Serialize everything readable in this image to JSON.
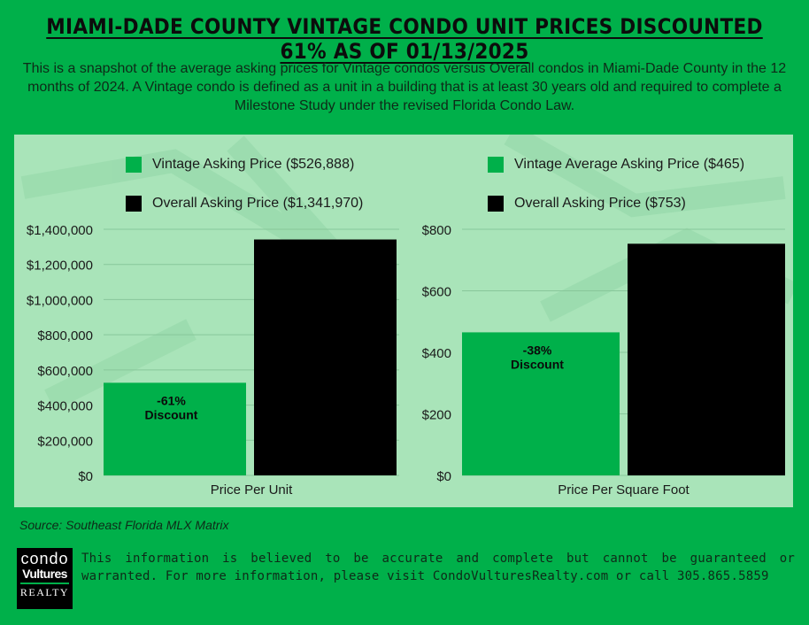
{
  "header": {
    "title": "MIAMI-DADE COUNTY VINTAGE CONDO UNIT PRICES DISCOUNTED 61% AS OF 01/13/2025",
    "subtitle": "This is a snapshot of the average asking prices for Vintage condos versus Overall condos in Miami-Dade County in the 12 months of 2024. A Vintage condo is defined as a unit in a building that is at least 30 years old and required to complete a Milestone Study under the revised Florida Condo Law."
  },
  "colors": {
    "vintage": "#00b04a",
    "overall": "#000000",
    "panel": "#a9e4b9",
    "background": "#00b04a"
  },
  "chart_data": [
    {
      "type": "bar",
      "categories": [
        "Price Per Unit"
      ],
      "series": [
        {
          "name": "Vintage Asking Price ($526,888)",
          "values": [
            526888
          ]
        },
        {
          "name": "Overall Asking Price ($1,341,970)",
          "values": [
            1341970
          ]
        }
      ],
      "ylim": [
        0,
        1400000
      ],
      "yticks": [
        0,
        200000,
        400000,
        600000,
        800000,
        1000000,
        1200000,
        1400000
      ],
      "ytick_labels": [
        "$0",
        "$200,000",
        "$400,000",
        "$600,000",
        "$800,000",
        "$1,000,000",
        "$1,200,000",
        "$1,400,000"
      ],
      "annotation": {
        "line1": "-61%",
        "line2": "Discount"
      },
      "grid": true,
      "legend": "top"
    },
    {
      "type": "bar",
      "categories": [
        "Price Per Square Foot"
      ],
      "series": [
        {
          "name": "Vintage Average Asking Price ($465)",
          "values": [
            465
          ]
        },
        {
          "name": "Overall Asking Price ($753)",
          "values": [
            753
          ]
        }
      ],
      "ylim": [
        0,
        800
      ],
      "yticks": [
        0,
        200,
        400,
        600,
        800
      ],
      "ytick_labels": [
        "$0",
        "$200",
        "$400",
        "$600",
        "$800"
      ],
      "annotation": {
        "line1": "-38%",
        "line2": "Discount"
      },
      "grid": true,
      "legend": "top"
    }
  ],
  "footer": {
    "source": "Source: Southeast Florida MLX Matrix",
    "disclaimer": "This information is believed to be accurate and complete but cannot be guaranteed or warranted. For more information, please visit CondoVulturesRealty.com or call 305.865.5859",
    "logo": {
      "line1": "condo",
      "line2": "Vultures",
      "line3": "REALTY"
    }
  }
}
